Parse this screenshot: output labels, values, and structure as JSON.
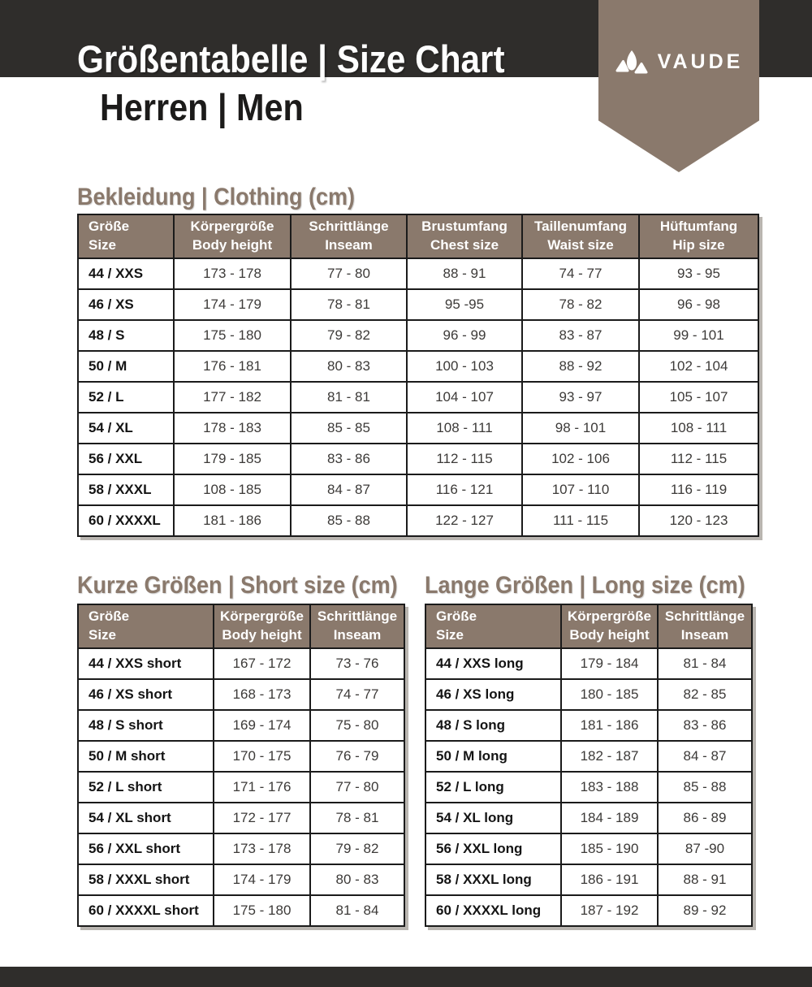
{
  "page": {
    "title_line1": "Größentabelle | Size Chart",
    "title_line2": "Herren | Men",
    "brand": "VAUDE"
  },
  "colors": {
    "dark_bar": "#2f2d2b",
    "taupe_accent": "#8a796c"
  },
  "tables": {
    "clothing": {
      "title": "Bekleidung | Clothing (cm)",
      "columns": [
        {
          "de": "Größe",
          "en": "Size"
        },
        {
          "de": "Körpergröße",
          "en": "Body height"
        },
        {
          "de": "Schrittlänge",
          "en": "Inseam"
        },
        {
          "de": "Brustumfang",
          "en": "Chest size"
        },
        {
          "de": "Taillenumfang",
          "en": "Waist size"
        },
        {
          "de": "Hüftumfang",
          "en": "Hip size"
        }
      ],
      "rows": [
        [
          "44 / XXS",
          "173 - 178",
          "77 - 80",
          "88 - 91",
          "74 - 77",
          "93 - 95"
        ],
        [
          "46 / XS",
          "174 - 179",
          "78 - 81",
          "95 -95",
          "78 - 82",
          "96 - 98"
        ],
        [
          "48 / S",
          "175 - 180",
          "79 - 82",
          "96 - 99",
          "83 - 87",
          "99 - 101"
        ],
        [
          "50 / M",
          "176 - 181",
          "80 - 83",
          "100 - 103",
          "88 - 92",
          "102 - 104"
        ],
        [
          "52 / L",
          "177 - 182",
          "81 - 81",
          "104 - 107",
          "93 - 97",
          "105 - 107"
        ],
        [
          "54 / XL",
          "178 - 183",
          "85 - 85",
          "108 - 111",
          "98 - 101",
          "108 - 111"
        ],
        [
          "56 / XXL",
          "179 - 185",
          "83 - 86",
          "112 - 115",
          "102 - 106",
          "112 - 115"
        ],
        [
          "58 / XXXL",
          "108 - 185",
          "84 - 87",
          "116 - 121",
          "107 - 110",
          "116 - 119"
        ],
        [
          "60 / XXXXL",
          "181 - 186",
          "85 - 88",
          "122 - 127",
          "111 - 115",
          "120 - 123"
        ]
      ]
    },
    "short": {
      "title": "Kurze Größen | Short size (cm)",
      "columns": [
        {
          "de": "Größe",
          "en": "Size"
        },
        {
          "de": "Körpergröße",
          "en": "Body height"
        },
        {
          "de": "Schrittlänge",
          "en": "Inseam"
        }
      ],
      "rows": [
        [
          "44 / XXS short",
          "167 - 172",
          "73 - 76"
        ],
        [
          "46 / XS short",
          "168 - 173",
          "74 - 77"
        ],
        [
          "48 / S short",
          "169 - 174",
          "75 - 80"
        ],
        [
          "50 / M short",
          "170 - 175",
          "76 - 79"
        ],
        [
          "52 / L short",
          "171 - 176",
          "77 - 80"
        ],
        [
          "54 / XL short",
          "172 - 177",
          "78 - 81"
        ],
        [
          "56 / XXL short",
          "173 - 178",
          "79 - 82"
        ],
        [
          "58 / XXXL short",
          "174 - 179",
          "80 - 83"
        ],
        [
          "60 / XXXXL short",
          "175 - 180",
          "81 - 84"
        ]
      ]
    },
    "long": {
      "title": "Lange Größen | Long size (cm)",
      "columns": [
        {
          "de": "Größe",
          "en": "Size"
        },
        {
          "de": "Körpergröße",
          "en": "Body height"
        },
        {
          "de": "Schrittlänge",
          "en": "Inseam"
        }
      ],
      "rows": [
        [
          "44 / XXS long",
          "179 - 184",
          "81 - 84"
        ],
        [
          "46 / XS long",
          "180 - 185",
          "82 - 85"
        ],
        [
          "48 / S long",
          "181 - 186",
          "83 - 86"
        ],
        [
          "50 / M long",
          "182 - 187",
          "84 - 87"
        ],
        [
          "52 / L long",
          "183 - 188",
          "85 - 88"
        ],
        [
          "54 / XL long",
          "184 - 189",
          "86 - 89"
        ],
        [
          "56 / XXL long",
          "185 - 190",
          "87 -90"
        ],
        [
          "58 / XXXL long",
          "186 - 191",
          "88 - 91"
        ],
        [
          "60 / XXXXL long",
          "187 - 192",
          "89 - 92"
        ]
      ]
    }
  }
}
